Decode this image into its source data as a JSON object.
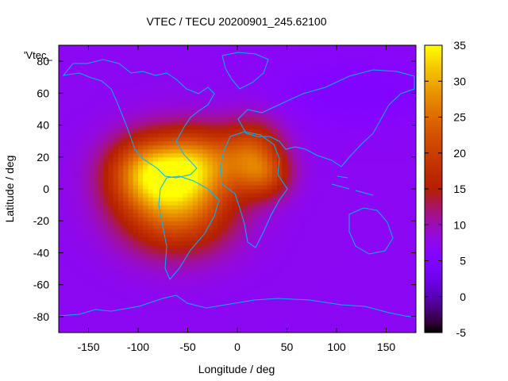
{
  "chart_data": {
    "type": "heatmap",
    "title": "VTEC / TECU 20200901_245.62100",
    "xlabel": "Longitude / deg",
    "ylabel": "Latitude / deg",
    "legend_key": "'Vtec_",
    "xlim": [
      -180,
      180
    ],
    "ylim": [
      -90,
      90
    ],
    "x_ticks": [
      -150,
      -100,
      -50,
      0,
      50,
      100,
      150
    ],
    "y_ticks": [
      -80,
      -60,
      -40,
      -20,
      0,
      20,
      40,
      60,
      80
    ],
    "colorbar": {
      "range": [
        -5,
        35
      ],
      "ticks": [
        -5,
        0,
        5,
        10,
        15,
        20,
        25,
        30,
        35
      ],
      "colormap": "gnuplot-hot"
    },
    "field": {
      "description_units": "TECU",
      "background": 7,
      "anomalies": [
        {
          "lon": -65,
          "lat": 5,
          "amp": 20,
          "sx": 40,
          "sy": 20
        },
        {
          "lon": -95,
          "lat": 12,
          "amp": 10,
          "sx": 25,
          "sy": 14
        },
        {
          "lon": -40,
          "lat": 18,
          "amp": 10,
          "sx": 25,
          "sy": 14
        },
        {
          "lon": 15,
          "lat": 22,
          "amp": 14,
          "sx": 22,
          "sy": 15
        },
        {
          "lon": 30,
          "lat": 8,
          "amp": 8,
          "sx": 18,
          "sy": 10
        },
        {
          "lon": -60,
          "lat": -20,
          "amp": 9,
          "sx": 40,
          "sy": 18
        },
        {
          "lon": 120,
          "lat": 60,
          "amp": -2,
          "sx": 60,
          "sy": 15
        }
      ]
    },
    "coastline_color": "#00b4ff"
  }
}
